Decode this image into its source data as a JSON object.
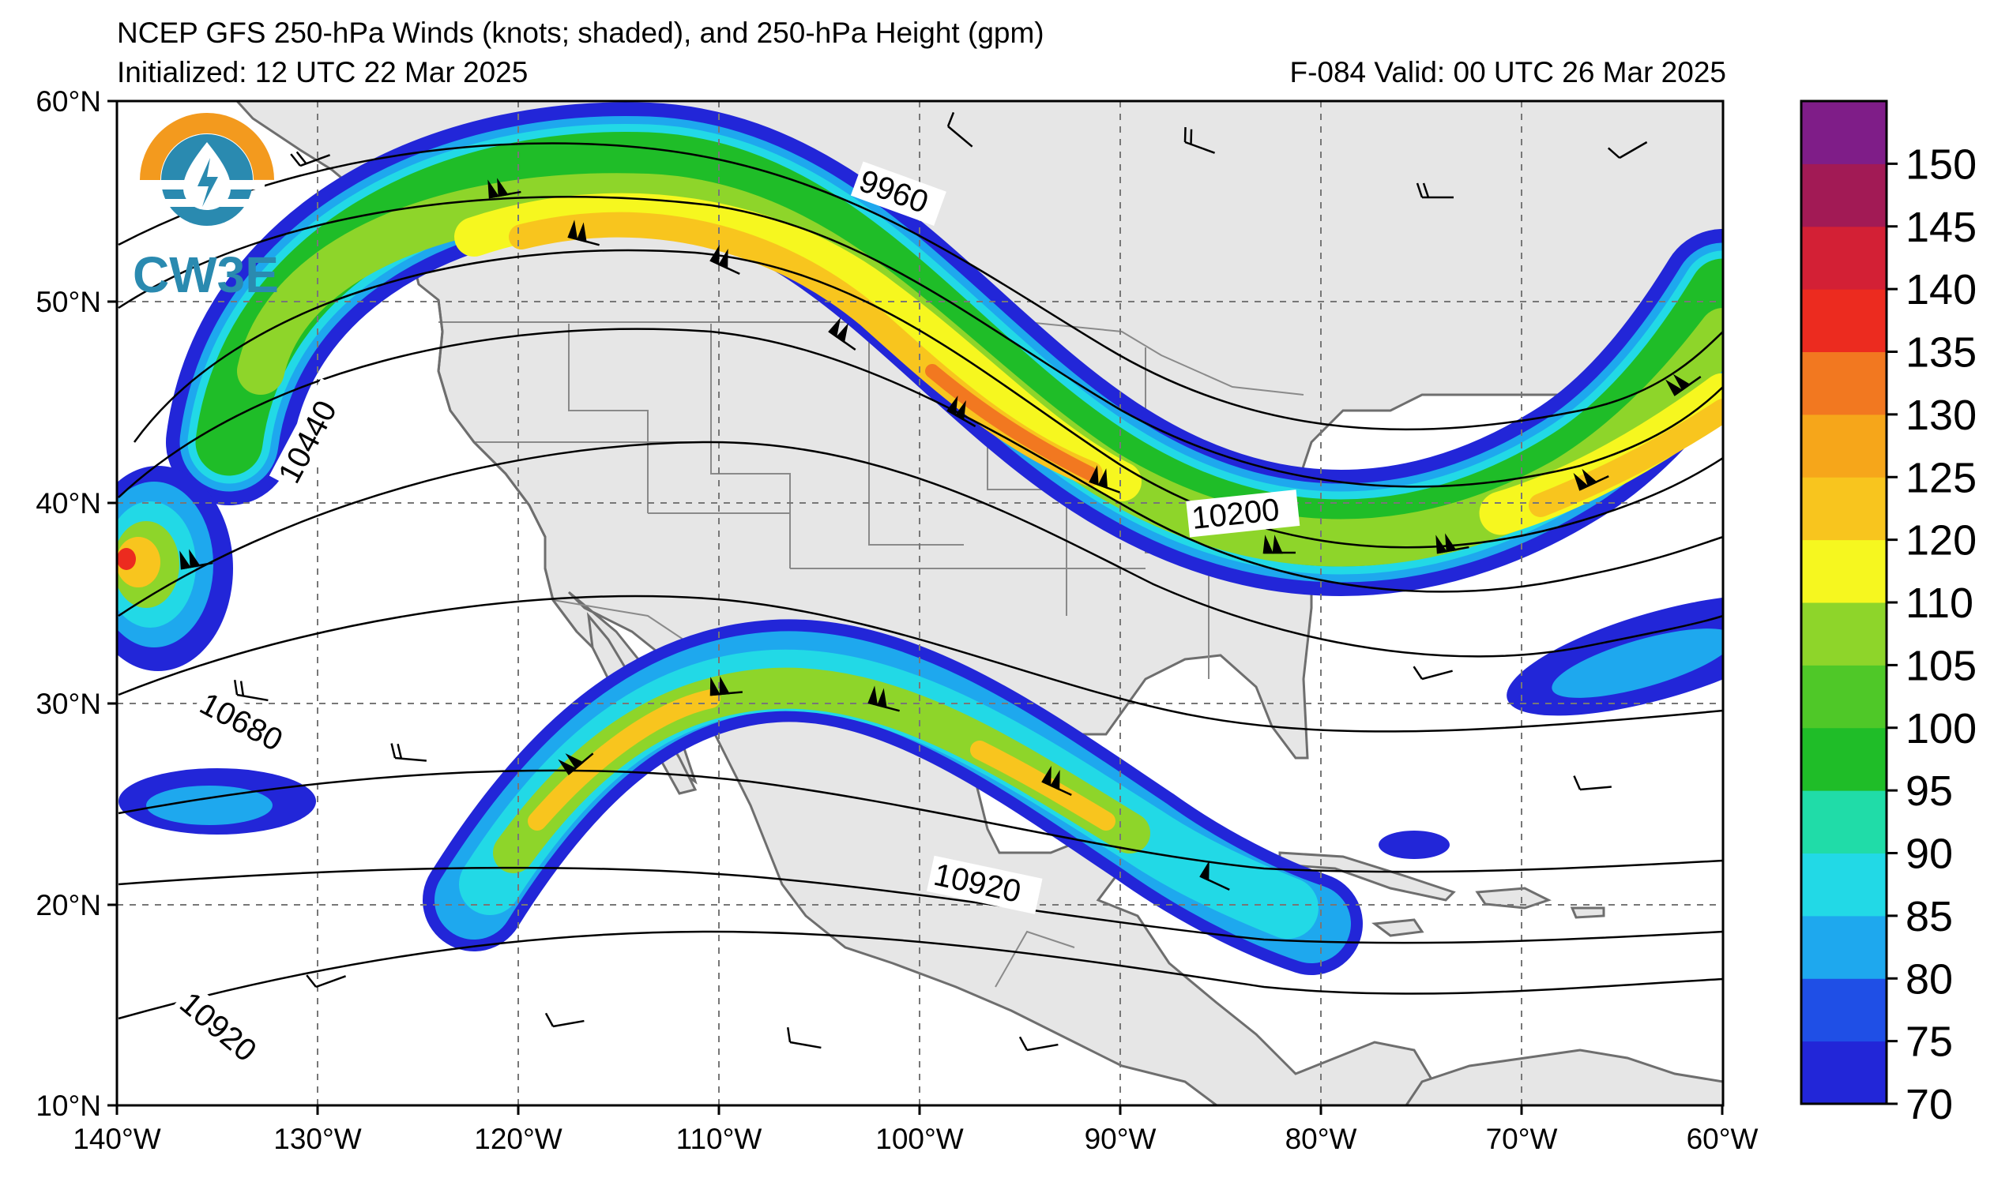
{
  "header": {
    "title_line1": "NCEP GFS 250-hPa Winds (knots; shaded), and 250-hPa Height (gpm)",
    "title_line2": "Initialized: 12 UTC 22 Mar 2025",
    "valid": "F-084  Valid: 00 UTC 26 Mar 2025"
  },
  "logo": {
    "text": "CW3E",
    "colors": {
      "orange": "#f39a1e",
      "teal": "#2a8ab0",
      "dark": "#1e6f8f"
    }
  },
  "map": {
    "region": "North America and eastern Pacific",
    "lon_range": [
      -140,
      -60
    ],
    "lat_range": [
      10,
      60
    ],
    "x_ticks": [
      "140°W",
      "130°W",
      "120°W",
      "110°W",
      "100°W",
      "90°W",
      "80°W",
      "70°W",
      "60°W"
    ],
    "y_ticks": [
      "60°N",
      "50°N",
      "40°N",
      "30°N",
      "20°N",
      "10°N"
    ],
    "land_color": "#e6e6e6",
    "ocean_color": "#ffffff",
    "coast_color": "#6e6e6e",
    "gridlines": "dashed"
  },
  "contours": {
    "variable": "250-hPa Height (gpm)",
    "labels": [
      {
        "text": "9960"
      },
      {
        "text": "10440"
      },
      {
        "text": "10200"
      },
      {
        "text": "10680"
      },
      {
        "text": "10920"
      },
      {
        "text": "10920"
      }
    ]
  },
  "shading": {
    "variable": "250-hPa Winds (knots)",
    "levels": [
      "70",
      "75",
      "80",
      "85",
      "90",
      "95",
      "100",
      "105",
      "110",
      "120",
      "125",
      "130",
      "135",
      "140",
      "145",
      "150"
    ],
    "colors": [
      "#2226d8",
      "#1f4fe6",
      "#1ea8ee",
      "#22d9e6",
      "#20dca8",
      "#1fbd28",
      "#4fc828",
      "#8ed52a",
      "#f6f71f",
      "#f8c51e",
      "#f6a61a",
      "#f27820",
      "#ec2b1f",
      "#d32035",
      "#a21a55",
      "#7f1d88"
    ],
    "labels": [
      "70",
      "75",
      "80",
      "85",
      "90",
      "95",
      "100",
      "105",
      "110",
      "120",
      "125",
      "130",
      "135",
      "140",
      "145",
      "150"
    ]
  }
}
